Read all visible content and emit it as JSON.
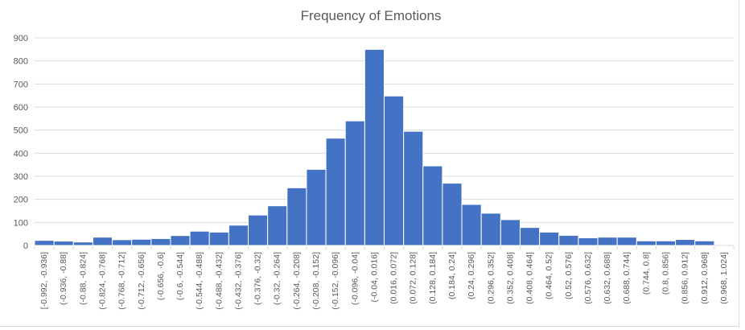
{
  "chart_data": {
    "type": "bar",
    "title": "Frequency of Emotions",
    "xlabel": "",
    "ylabel": "",
    "ylim": [
      0,
      900
    ],
    "yticks": [
      0,
      100,
      200,
      300,
      400,
      500,
      600,
      700,
      800,
      900
    ],
    "grid": true,
    "legend": "none",
    "bar_color": "#4472c4",
    "categories": [
      "[-0.992, -0.936]",
      "(-0.936, -0.88]",
      "(-0.88, -0.824]",
      "(-0.824, -0.768]",
      "(-0.768, -0.712]",
      "(-0.712, -0.656]",
      "(-0.656, -0.6]",
      "(-0.6, -0.544]",
      "(-0.544, -0.488]",
      "(-0.488, -0.432]",
      "(-0.432, -0.376]",
      "(-0.376, -0.32]",
      "(-0.32, -0.264]",
      "(-0.264, -0.208]",
      "(-0.208, -0.152]",
      "(-0.152, -0.096]",
      "(-0.096, -0.04]",
      "(-0.04, 0.016]",
      "(0.016, 0.072]",
      "(0.072, 0.128]",
      "(0.128, 0.184]",
      "(0.184, 0.24]",
      "(0.24, 0.296]",
      "(0.296, 0.352]",
      "(0.352, 0.408]",
      "(0.408, 0.464]",
      "(0.464, 0.52]",
      "(0.52, 0.576]",
      "(0.576, 0.632]",
      "(0.632, 0.688]",
      "(0.688, 0.744]",
      "(0.744, 0.8]",
      "(0.8, 0.856]",
      "(0.856, 0.912]",
      "(0.912, 0.968]",
      "(0.968, 1.024]"
    ],
    "values": [
      22,
      19,
      15,
      36,
      25,
      27,
      30,
      43,
      62,
      58,
      88,
      132,
      172,
      250,
      330,
      465,
      540,
      850,
      648,
      495,
      345,
      270,
      178,
      140,
      112,
      78,
      58,
      44,
      33,
      36,
      36,
      20,
      20,
      26,
      20,
      0
    ]
  }
}
